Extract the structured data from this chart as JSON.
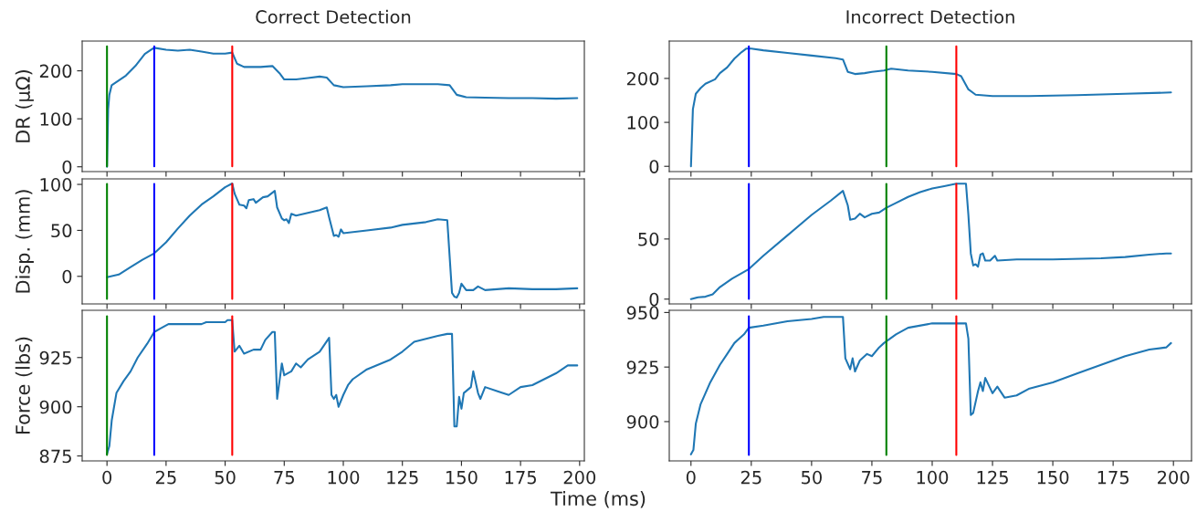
{
  "chart_data": [
    {
      "type": "line",
      "title": "Correct Detection",
      "ylabel": "DR (μΩ)",
      "xlim": [
        -10.5,
        202
      ],
      "xticks": [
        0,
        25,
        50,
        75,
        100,
        125,
        150,
        175,
        200
      ],
      "ylim": [
        -10,
        262
      ],
      "yticks": [
        0,
        100,
        200
      ],
      "tick_labels": "y",
      "grid": false,
      "legend": false,
      "series": [
        {
          "color": "#1f77b4",
          "x": [
            0,
            0.5,
            1,
            2,
            5,
            8,
            12,
            16,
            19,
            20,
            25,
            30,
            35,
            40,
            45,
            50,
            53,
            55,
            58,
            65,
            70,
            73,
            75,
            80,
            85,
            90,
            93,
            96,
            100,
            110,
            120,
            125,
            135,
            140,
            145,
            148,
            152,
            160,
            170,
            180,
            190,
            199
          ],
          "values": [
            0,
            120,
            150,
            170,
            180,
            190,
            210,
            235,
            245,
            248,
            244,
            242,
            244,
            240,
            236,
            236,
            238,
            215,
            208,
            208,
            210,
            195,
            182,
            182,
            185,
            188,
            186,
            170,
            166,
            168,
            170,
            172,
            172,
            172,
            170,
            150,
            145,
            144,
            143,
            143,
            142,
            143
          ]
        }
      ],
      "ref_lines": [
        {
          "axis": "x",
          "value": 0,
          "color": "#008000"
        },
        {
          "axis": "x",
          "value": 20,
          "color": "#0000ff"
        },
        {
          "axis": "x",
          "value": 53,
          "color": "#ff0000"
        }
      ]
    },
    {
      "type": "line",
      "title": "Incorrect Detection",
      "xlim": [
        -9,
        207.5
      ],
      "xticks": [
        0,
        25,
        50,
        75,
        100,
        125,
        150,
        175,
        200
      ],
      "ylim": [
        -12,
        285
      ],
      "yticks": [
        0,
        100,
        200
      ],
      "tick_labels": "y",
      "grid": false,
      "legend": false,
      "series": [
        {
          "color": "#1f77b4",
          "x": [
            0,
            0.8,
            2,
            4,
            6,
            10,
            12,
            15,
            18,
            21,
            23,
            25,
            30,
            40,
            50,
            60,
            63,
            65,
            68,
            72,
            75,
            80,
            83,
            90,
            100,
            110,
            112,
            115,
            118,
            125,
            140,
            160,
            180,
            199
          ],
          "values": [
            0,
            130,
            165,
            178,
            188,
            198,
            212,
            225,
            245,
            260,
            268,
            268,
            264,
            258,
            252,
            246,
            243,
            215,
            210,
            212,
            215,
            218,
            222,
            218,
            215,
            210,
            205,
            175,
            163,
            160,
            160,
            162,
            165,
            168
          ]
        }
      ],
      "ref_lines": [
        {
          "axis": "x",
          "value": 24,
          "color": "#0000ff"
        },
        {
          "axis": "x",
          "value": 81,
          "color": "#008000"
        },
        {
          "axis": "x",
          "value": 110,
          "color": "#ff0000"
        }
      ]
    },
    {
      "type": "line",
      "ylabel": "Disp. (mm)",
      "xlim": [
        -10.5,
        202
      ],
      "xticks": [
        0,
        25,
        50,
        75,
        100,
        125,
        150,
        175,
        200
      ],
      "ylim": [
        -30,
        106
      ],
      "yticks": [
        0,
        50,
        100
      ],
      "tick_labels": "y",
      "grid": false,
      "legend": false,
      "series": [
        {
          "color": "#1f77b4",
          "x": [
            0,
            5,
            10,
            15,
            20,
            25,
            30,
            35,
            40,
            45,
            50,
            53,
            54,
            56,
            58,
            59,
            60,
            62,
            63,
            66,
            68,
            71,
            72,
            74,
            75,
            76,
            77,
            78,
            80,
            85,
            90,
            93,
            94,
            96,
            97,
            98,
            99,
            100,
            110,
            120,
            125,
            135,
            140,
            144,
            146,
            147,
            148,
            149,
            150,
            152,
            155,
            157,
            160,
            170,
            180,
            190,
            199
          ],
          "values": [
            -1,
            2,
            10,
            18,
            25,
            37,
            52,
            66,
            78,
            87,
            97,
            101,
            90,
            78,
            77,
            74,
            83,
            84,
            80,
            86,
            87,
            93,
            75,
            63,
            61,
            62,
            58,
            68,
            66,
            69,
            72,
            75,
            64,
            44,
            45,
            43,
            51,
            47,
            50,
            53,
            56,
            59,
            62,
            61,
            -18,
            -22,
            -23,
            -18,
            -8,
            -15,
            -15,
            -11,
            -15,
            -13,
            -14,
            -14,
            -13
          ]
        }
      ],
      "ref_lines": [
        {
          "axis": "x",
          "value": 0,
          "color": "#008000"
        },
        {
          "axis": "x",
          "value": 20,
          "color": "#0000ff"
        },
        {
          "axis": "x",
          "value": 53,
          "color": "#ff0000"
        }
      ]
    },
    {
      "type": "line",
      "xlim": [
        -9,
        207.5
      ],
      "xticks": [
        0,
        25,
        50,
        75,
        100,
        125,
        150,
        175,
        200
      ],
      "ylim": [
        -4,
        100
      ],
      "yticks": [
        0,
        50
      ],
      "tick_labels": "y",
      "grid": false,
      "legend": false,
      "series": [
        {
          "color": "#1f77b4",
          "x": [
            0,
            3,
            6,
            9,
            12,
            17,
            24,
            30,
            40,
            50,
            58,
            63,
            65,
            66,
            68,
            70,
            72,
            75,
            78,
            81,
            85,
            90,
            95,
            100,
            105,
            110,
            114,
            115,
            116,
            117,
            118,
            119,
            120,
            121,
            122,
            124,
            126,
            127,
            135,
            150,
            170,
            180,
            190,
            197,
            199
          ],
          "values": [
            0,
            1.5,
            2,
            4,
            10,
            17,
            25,
            36,
            53,
            70,
            82,
            90,
            78,
            66,
            67,
            71,
            68,
            71,
            72,
            76,
            80,
            85,
            89,
            92,
            94,
            96,
            96,
            70,
            38,
            28,
            29,
            27,
            37,
            38,
            32,
            32,
            36,
            32,
            33,
            33,
            34,
            35,
            37,
            38,
            38
          ]
        }
      ],
      "ref_lines": [
        {
          "axis": "x",
          "value": 24,
          "color": "#0000ff"
        },
        {
          "axis": "x",
          "value": 81,
          "color": "#008000"
        },
        {
          "axis": "x",
          "value": 110,
          "color": "#ff0000"
        }
      ]
    },
    {
      "type": "line",
      "ylabel": "Force (lbs)",
      "xlim": [
        -10.5,
        202
      ],
      "xticks": [
        0,
        25,
        50,
        75,
        100,
        125,
        150,
        175,
        200
      ],
      "ylim": [
        872.5,
        949
      ],
      "yticks": [
        875,
        900,
        925
      ],
      "grid": false,
      "legend": false,
      "series": [
        {
          "color": "#1f77b4",
          "x": [
            0,
            1,
            2,
            4,
            7,
            10,
            13,
            17,
            20,
            23,
            26,
            40,
            42,
            50,
            51,
            53,
            54,
            56,
            58,
            62,
            65,
            67,
            70,
            71,
            72,
            74,
            75,
            78,
            80,
            82,
            85,
            90,
            94,
            95,
            96,
            97,
            98,
            100,
            102,
            104,
            110,
            120,
            125,
            130,
            140,
            144,
            146,
            147,
            148,
            149,
            150,
            151,
            154,
            155,
            157,
            158,
            160,
            165,
            170,
            175,
            180,
            185,
            190,
            195,
            199
          ],
          "values": [
            876,
            880,
            893,
            907,
            913,
            918,
            925,
            932,
            938,
            940,
            942,
            942,
            943,
            943,
            944,
            944,
            928,
            931,
            927,
            929,
            929,
            934,
            938,
            938,
            904,
            922,
            916,
            918,
            922,
            920,
            924,
            928,
            935,
            906,
            904,
            906,
            900,
            906,
            911,
            914,
            919,
            924,
            928,
            933,
            936,
            937,
            937,
            890,
            890,
            905,
            899,
            907,
            910,
            918,
            907,
            904,
            910,
            908,
            906,
            910,
            911,
            914,
            917,
            921,
            921
          ]
        }
      ],
      "ref_lines": [
        {
          "axis": "x",
          "value": 0,
          "color": "#008000"
        },
        {
          "axis": "x",
          "value": 20,
          "color": "#0000ff"
        },
        {
          "axis": "x",
          "value": 53,
          "color": "#ff0000"
        }
      ]
    },
    {
      "type": "line",
      "xlim": [
        -9,
        207.5
      ],
      "xticks": [
        0,
        25,
        50,
        75,
        100,
        125,
        150,
        175,
        200
      ],
      "ylim": [
        882,
        951
      ],
      "yticks": [
        900,
        925,
        950
      ],
      "grid": false,
      "legend": false,
      "annotations": [
        "Time (ms)"
      ],
      "series": [
        {
          "color": "#1f77b4",
          "x": [
            0,
            1,
            2,
            4,
            6,
            8,
            12,
            15,
            18,
            20,
            22,
            24,
            30,
            40,
            50,
            55,
            63,
            64,
            66,
            67,
            68,
            70,
            73,
            75,
            78,
            80,
            85,
            90,
            100,
            114,
            115,
            116,
            117,
            119,
            120,
            121,
            122,
            125,
            127,
            130,
            135,
            140,
            150,
            160,
            170,
            180,
            190,
            197,
            199
          ],
          "values": [
            885,
            887,
            899,
            908,
            913,
            918,
            926,
            931,
            936,
            938,
            940,
            943,
            944,
            946,
            947,
            948,
            948,
            929,
            924,
            929,
            923,
            928,
            931,
            930,
            934,
            936,
            940,
            943,
            945,
            945,
            938,
            903,
            904,
            914,
            918,
            914,
            920,
            913,
            916,
            911,
            912,
            915,
            918,
            922,
            926,
            930,
            933,
            934,
            936
          ]
        }
      ],
      "ref_lines": [
        {
          "axis": "x",
          "value": 24,
          "color": "#0000ff"
        },
        {
          "axis": "x",
          "value": 81,
          "color": "#008000"
        },
        {
          "axis": "x",
          "value": 110,
          "color": "#ff0000"
        }
      ]
    }
  ]
}
